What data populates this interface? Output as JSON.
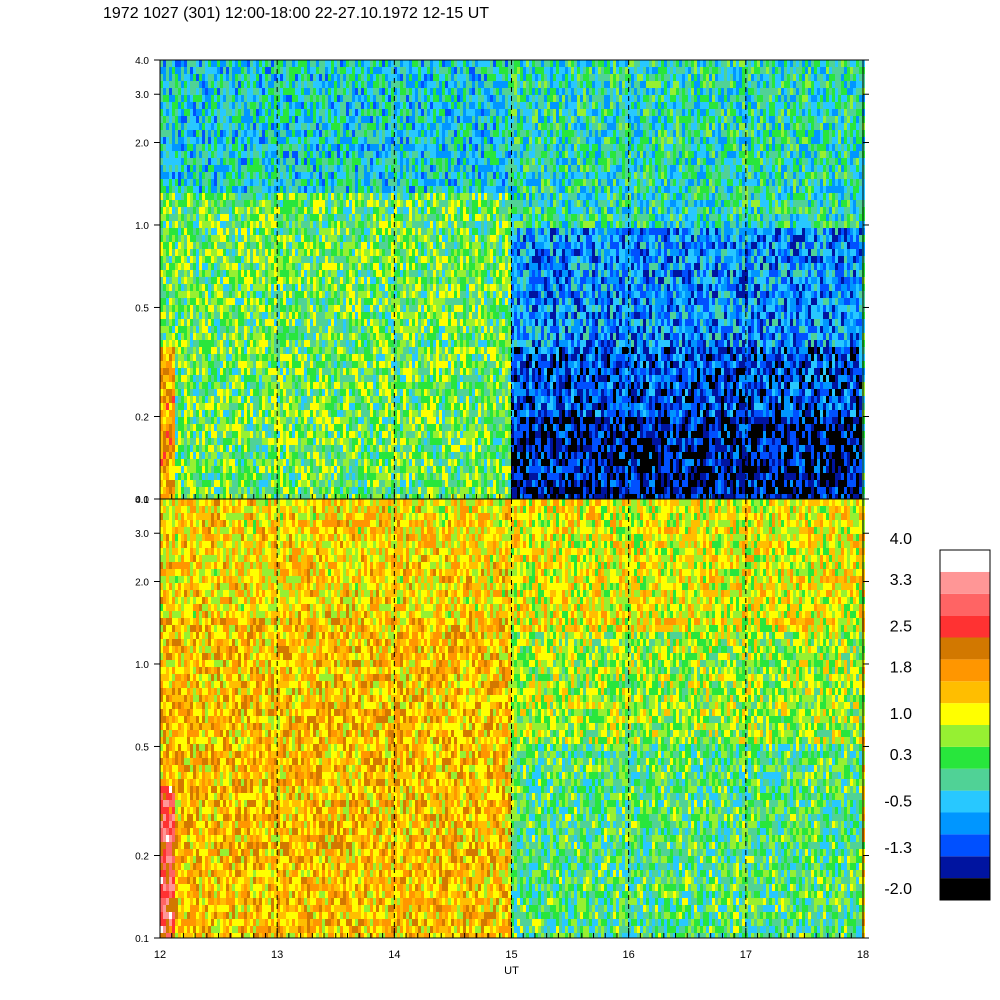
{
  "title": "1972 1027 (301) 12:00-18:00 22-27.10.1972  12-15 UT",
  "chart_data": [
    {
      "type": "heatmap",
      "panel": "upper",
      "x": [
        12,
        13,
        14,
        15,
        16,
        17,
        18
      ],
      "xlim": [
        12,
        18
      ],
      "ylim": [
        0.1,
        4.0
      ],
      "yscale": "log",
      "yticks": [
        0.1,
        0.2,
        0.5,
        1.0,
        2.0,
        3.0,
        4.0
      ],
      "ytick_labels": [
        "0.1",
        "0.2",
        "0.5",
        "1.0",
        "2.0",
        "3.0",
        "4.0"
      ],
      "dashed_verticals": [
        13,
        14,
        15,
        16,
        17
      ],
      "regions": [
        {
          "x": [
            12.0,
            12.12
          ],
          "y": [
            0.1,
            0.35
          ],
          "level": 1.8
        },
        {
          "x": [
            12.0,
            15.0
          ],
          "y": [
            0.1,
            1.3
          ],
          "level": 0.5
        },
        {
          "x": [
            12.0,
            15.0
          ],
          "y": [
            1.3,
            4.0
          ],
          "level": -0.2
        },
        {
          "x": [
            15.0,
            18.0
          ],
          "y": [
            0.1,
            0.2
          ],
          "level": -1.5
        },
        {
          "x": [
            15.0,
            18.0
          ],
          "y": [
            0.2,
            0.35
          ],
          "level": -1.1
        },
        {
          "x": [
            15.0,
            18.0
          ],
          "y": [
            0.35,
            1.0
          ],
          "level": -0.7
        },
        {
          "x": [
            15.0,
            18.0
          ],
          "y": [
            1.0,
            4.0
          ],
          "level": 0.0
        }
      ]
    },
    {
      "type": "heatmap",
      "panel": "lower",
      "x": [
        12,
        13,
        14,
        15,
        16,
        17,
        18
      ],
      "xlim": [
        12,
        18
      ],
      "ylim": [
        0.1,
        4.0
      ],
      "yscale": "log",
      "yticks": [
        0.1,
        0.2,
        0.5,
        1.0,
        2.0,
        3.0,
        4.0
      ],
      "ytick_labels": [
        "0.1",
        "0.2",
        "0.5",
        "1.0",
        "2.0",
        "3.0",
        "4.0"
      ],
      "xlabel": "UT",
      "xtick_labels": [
        "12",
        "13",
        "14",
        "15",
        "16",
        "17",
        "18"
      ],
      "dashed_verticals": [
        13,
        14,
        15,
        16,
        17
      ],
      "regions": [
        {
          "x": [
            12.0,
            12.12
          ],
          "y": [
            0.1,
            0.35
          ],
          "level": 2.9
        },
        {
          "x": [
            12.0,
            15.0
          ],
          "y": [
            0.1,
            1.5
          ],
          "level": 1.6
        },
        {
          "x": [
            12.0,
            15.0
          ],
          "y": [
            1.5,
            4.0
          ],
          "level": 1.4
        },
        {
          "x": [
            15.0,
            18.0
          ],
          "y": [
            0.1,
            0.5
          ],
          "level": 0.3
        },
        {
          "x": [
            15.0,
            18.0
          ],
          "y": [
            0.5,
            1.3
          ],
          "level": 0.8
        },
        {
          "x": [
            15.0,
            18.0
          ],
          "y": [
            1.3,
            4.0
          ],
          "level": 1.2
        }
      ]
    }
  ],
  "colorbar": {
    "labels": [
      "4.0",
      "3.3",
      "2.5",
      "1.8",
      "1.0",
      "0.3",
      "-0.5",
      "-1.3",
      "-2.0"
    ],
    "label_values": [
      4.0,
      3.3,
      2.5,
      1.8,
      1.0,
      0.3,
      -0.5,
      -1.3,
      -2.0
    ],
    "range": [
      -2.0,
      4.0
    ],
    "colors": [
      "#000000",
      "#0014a0",
      "#0050ff",
      "#0096ff",
      "#28c8ff",
      "#50d296",
      "#28e63c",
      "#96f032",
      "#ffff00",
      "#ffbe00",
      "#ff9600",
      "#d27800",
      "#ff3232",
      "#ff6464",
      "#ff9696",
      "#ffffff"
    ]
  }
}
